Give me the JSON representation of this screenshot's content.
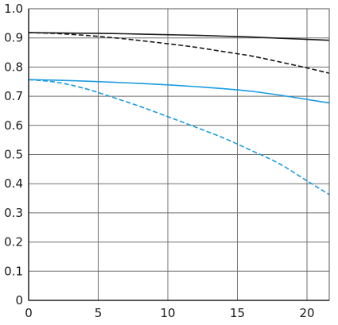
{
  "chart_data": {
    "type": "line",
    "title": "",
    "xlabel": "",
    "ylabel": "",
    "xlim": [
      0,
      21.6
    ],
    "ylim": [
      0,
      1.0
    ],
    "x_ticks": [
      "0",
      "5",
      "10",
      "15",
      "20"
    ],
    "y_ticks": [
      "0",
      "0.1",
      "0.2",
      "0.3",
      "0.4",
      "0.5",
      "0.6",
      "0.7",
      "0.8",
      "0.9",
      "1.0"
    ],
    "grid": true,
    "legend": "none",
    "series": [
      {
        "color": "#1a1a1a",
        "dash": "solid",
        "points": [
          [
            0,
            0.918
          ],
          [
            2,
            0.917
          ],
          [
            4,
            0.916
          ],
          [
            6,
            0.915
          ],
          [
            8,
            0.913
          ],
          [
            10,
            0.911
          ],
          [
            12,
            0.909
          ],
          [
            14,
            0.906
          ],
          [
            16,
            0.903
          ],
          [
            18,
            0.899
          ],
          [
            20,
            0.895
          ],
          [
            21.6,
            0.892
          ]
        ]
      },
      {
        "color": "#1a1a1a",
        "dash": "dashed",
        "points": [
          [
            0,
            0.918
          ],
          [
            2,
            0.915
          ],
          [
            4,
            0.909
          ],
          [
            6,
            0.901
          ],
          [
            8,
            0.891
          ],
          [
            10,
            0.88
          ],
          [
            12,
            0.868
          ],
          [
            14,
            0.853
          ],
          [
            16,
            0.838
          ],
          [
            18,
            0.818
          ],
          [
            20,
            0.797
          ],
          [
            21.6,
            0.779
          ]
        ]
      },
      {
        "color": "#1a9be0",
        "dash": "solid",
        "points": [
          [
            0,
            0.757
          ],
          [
            2,
            0.755
          ],
          [
            4,
            0.752
          ],
          [
            6,
            0.748
          ],
          [
            8,
            0.744
          ],
          [
            10,
            0.739
          ],
          [
            12,
            0.733
          ],
          [
            14,
            0.726
          ],
          [
            16,
            0.717
          ],
          [
            18,
            0.704
          ],
          [
            20,
            0.689
          ],
          [
            21.6,
            0.677
          ]
        ]
      },
      {
        "color": "#1a9be0",
        "dash": "dashed",
        "points": [
          [
            0,
            0.757
          ],
          [
            2,
            0.748
          ],
          [
            4,
            0.727
          ],
          [
            6,
            0.697
          ],
          [
            8,
            0.665
          ],
          [
            10,
            0.63
          ],
          [
            12,
            0.594
          ],
          [
            14,
            0.557
          ],
          [
            16,
            0.514
          ],
          [
            18,
            0.469
          ],
          [
            20,
            0.41
          ],
          [
            21.6,
            0.363
          ]
        ]
      }
    ]
  }
}
